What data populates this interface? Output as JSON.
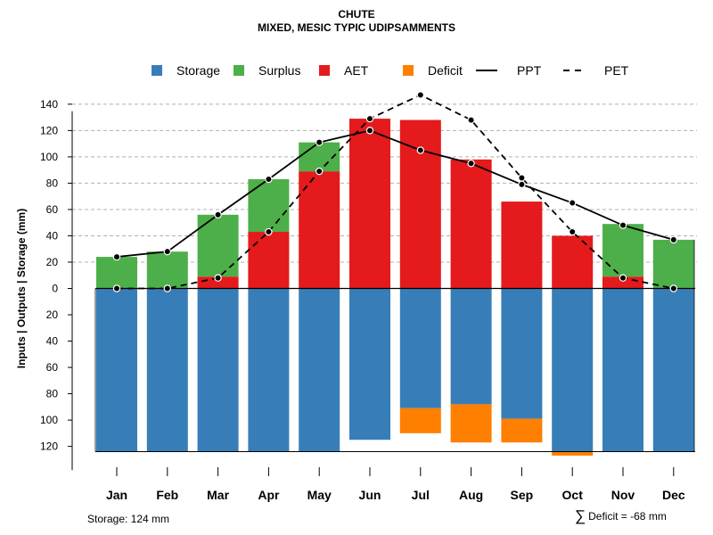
{
  "title": "CHUTE",
  "subtitle": "MIXED, MESIC TYPIC UDIPSAMMENTS",
  "chart_data": {
    "type": "bar",
    "ylabel": "Inputs | Outputs | Storage    (mm)",
    "ylim": [
      -130,
      155
    ],
    "yticks": [
      140,
      120,
      100,
      80,
      60,
      40,
      20,
      0,
      -20,
      -40,
      -60,
      -80,
      -100,
      -120
    ],
    "ytick_labels": [
      "140",
      "120",
      "100",
      "80",
      "60",
      "40",
      "20",
      "0",
      "20",
      "40",
      "60",
      "80",
      "100",
      "120"
    ],
    "grid": "horizontal dashed, positive side",
    "categories": [
      "Jan",
      "Feb",
      "Mar",
      "Apr",
      "May",
      "Jun",
      "Jul",
      "Aug",
      "Sep",
      "Oct",
      "Nov",
      "Dec"
    ],
    "legend": {
      "placement": "top",
      "items": [
        {
          "label": "Storage",
          "kind": "square",
          "color": "#377EB8"
        },
        {
          "label": "Surplus",
          "kind": "square",
          "color": "#4DAF4A"
        },
        {
          "label": "AET",
          "kind": "square",
          "color": "#E41A1C"
        },
        {
          "label": "Deficit",
          "kind": "square",
          "color": "#FF7F00"
        },
        {
          "label": "PPT",
          "kind": "solid-line",
          "color": "#000000"
        },
        {
          "label": "PET",
          "kind": "dashed-line",
          "color": "#000000"
        }
      ]
    },
    "series": [
      {
        "name": "AET",
        "color": "#E41A1C",
        "values": [
          0,
          0,
          9,
          43,
          89,
          129,
          128,
          98,
          66,
          40,
          9,
          0
        ]
      },
      {
        "name": "Surplus",
        "color": "#4DAF4A",
        "values": [
          24,
          28,
          47,
          40,
          22,
          0,
          0,
          0,
          0,
          0,
          40,
          37
        ]
      },
      {
        "name": "Storage",
        "color": "#377EB8",
        "values": [
          124,
          124,
          124,
          124,
          124,
          115,
          91,
          88,
          99,
          124,
          124,
          124
        ]
      },
      {
        "name": "Deficit",
        "color": "#FF7F00",
        "values": [
          0,
          0,
          0,
          0,
          0,
          0,
          19,
          29,
          18,
          3,
          0,
          0
        ]
      },
      {
        "name": "PPT",
        "color": "#000000",
        "values": [
          24,
          28,
          56,
          83,
          111,
          120,
          105,
          95,
          79,
          65,
          48,
          37
        ]
      },
      {
        "name": "PET",
        "color": "#000000",
        "values": [
          0,
          0,
          8,
          43,
          89,
          129,
          147,
          128,
          84,
          43,
          8,
          0
        ]
      }
    ],
    "storage_capacity": 124
  },
  "footer": {
    "storage_label": "Storage: 124 mm",
    "sigma_symbol": "∑",
    "deficit_label": "Deficit = -68 mm"
  }
}
